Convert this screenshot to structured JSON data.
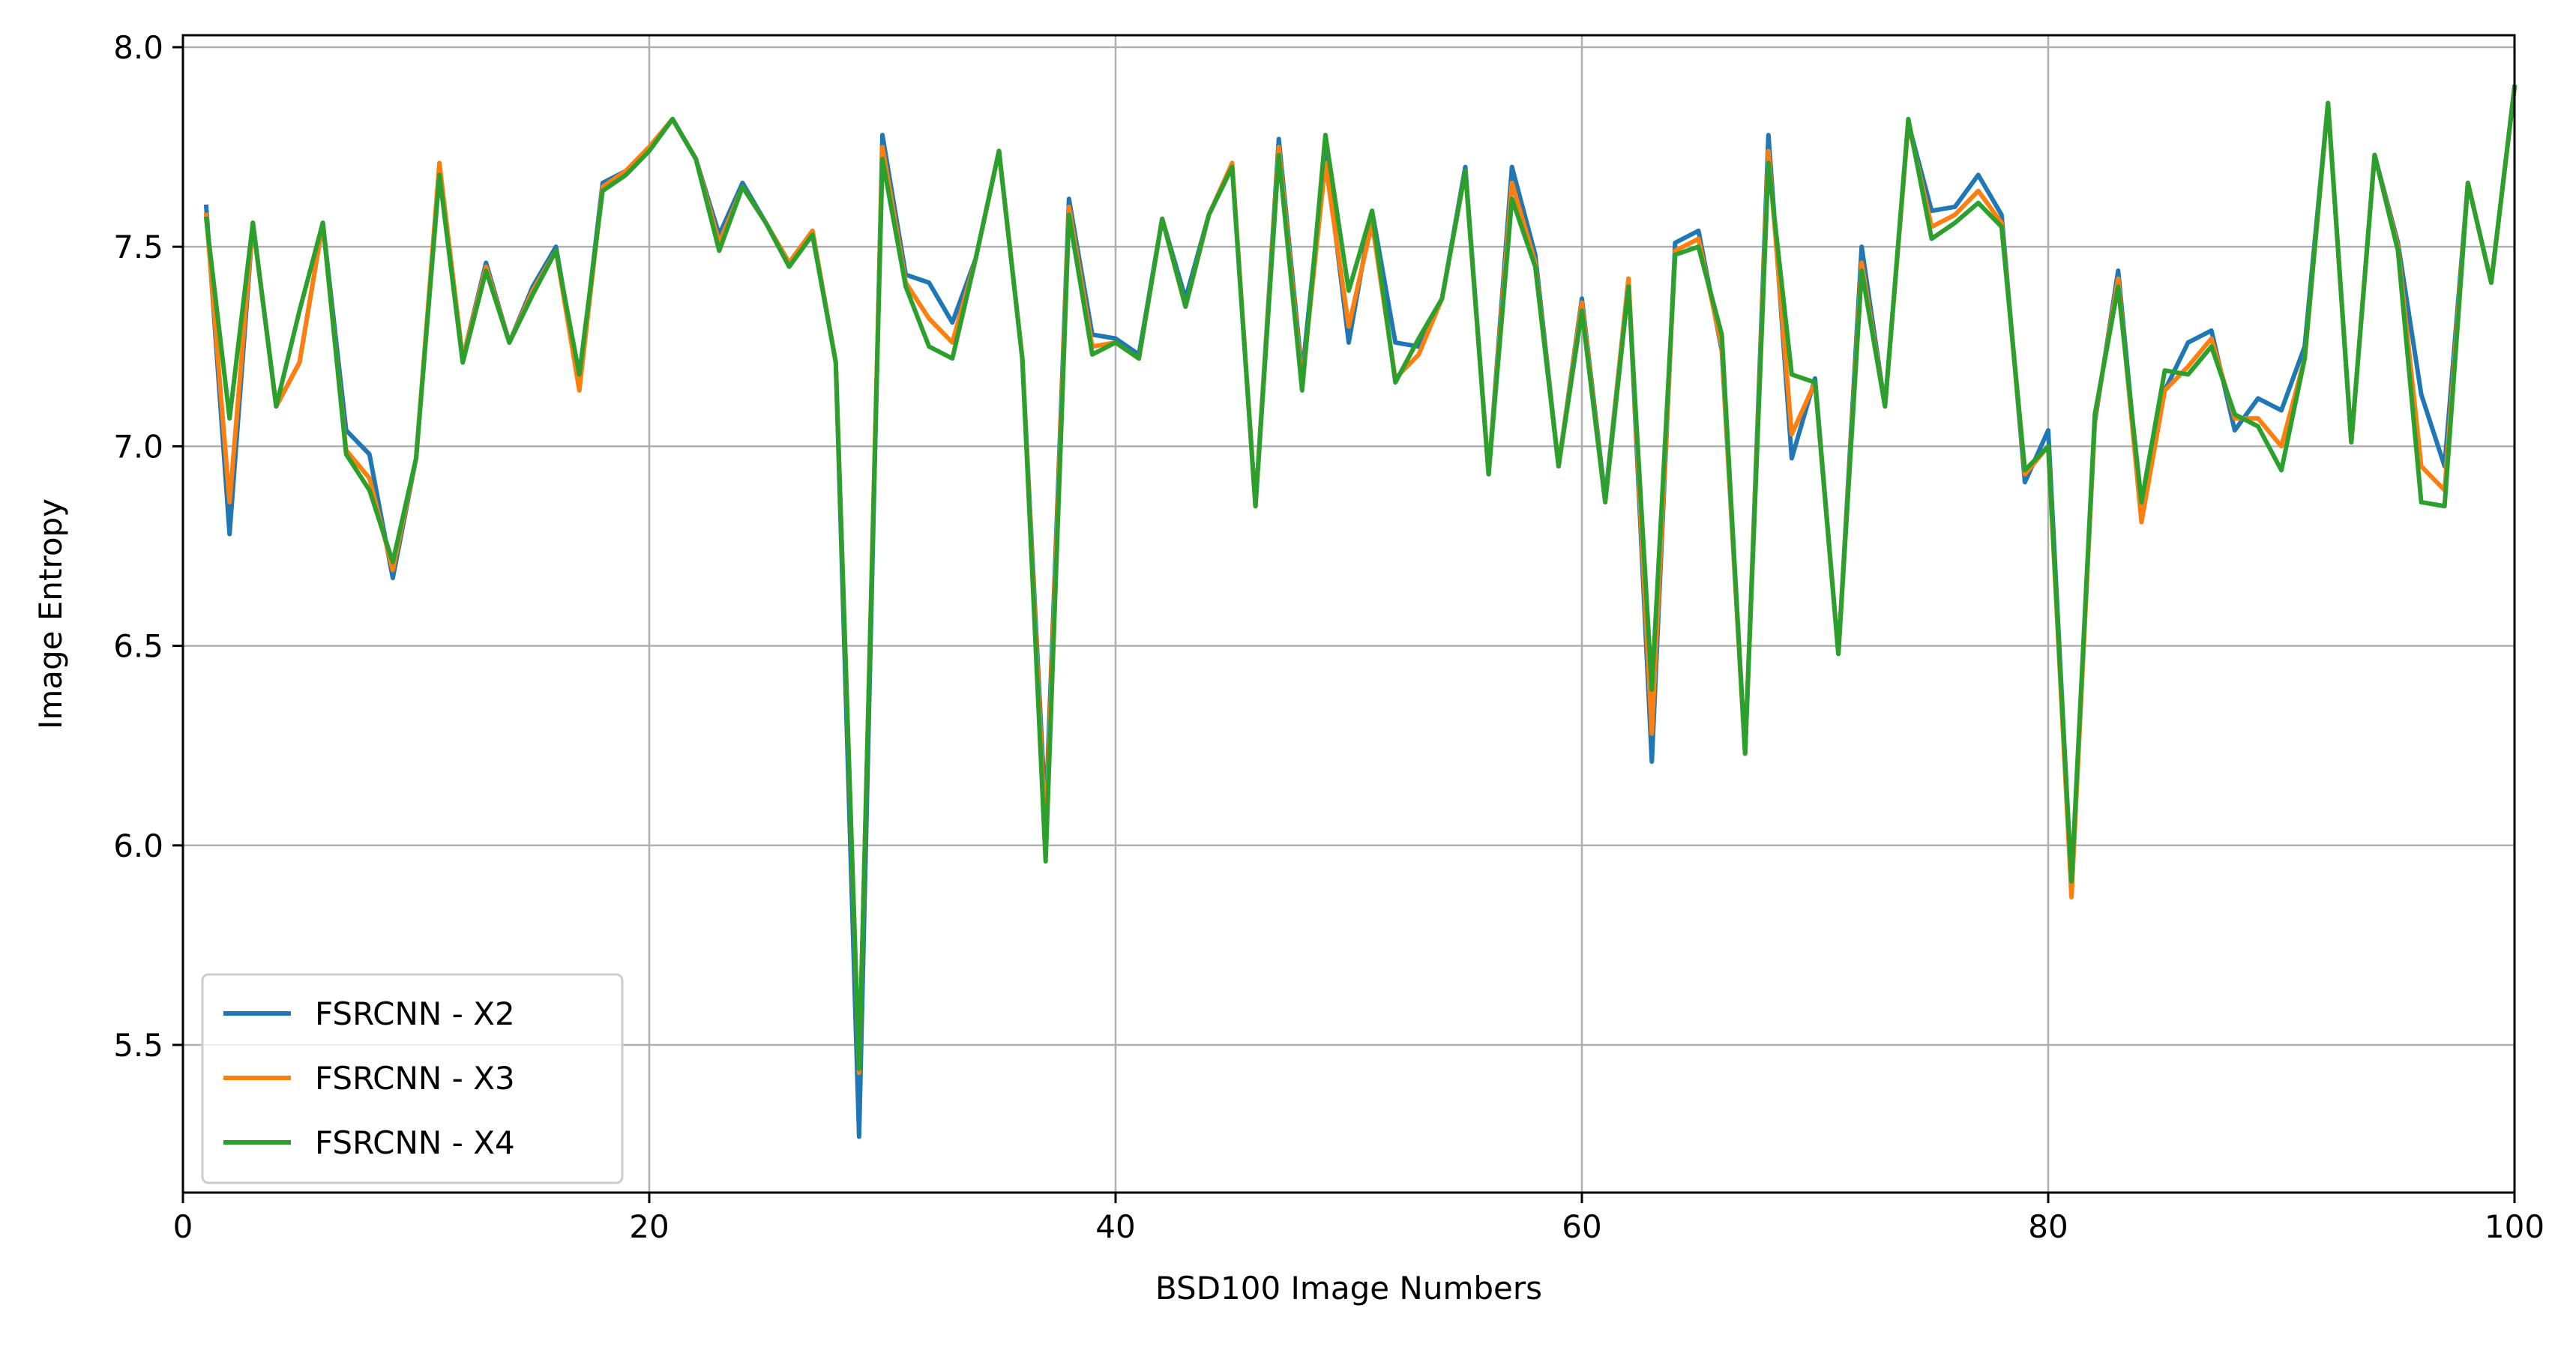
{
  "chart_data": {
    "type": "line",
    "title": "",
    "xlabel": "BSD100 Image Numbers",
    "ylabel": "Image Entropy",
    "xlim": [
      0,
      100
    ],
    "ylim": [
      5.13,
      8.03
    ],
    "xticks": [
      0,
      20,
      40,
      60,
      80,
      100
    ],
    "yticks": [
      5.5,
      6.0,
      6.5,
      7.0,
      7.5,
      8.0
    ],
    "xtick_labels": [
      "0",
      "20",
      "40",
      "60",
      "80",
      "100"
    ],
    "ytick_labels": [
      "5.5",
      "6.0",
      "6.5",
      "7.0",
      "7.5",
      "8.0"
    ],
    "grid": true,
    "legend": "lower-left",
    "x": [
      1,
      2,
      3,
      4,
      5,
      6,
      7,
      8,
      9,
      10,
      11,
      12,
      13,
      14,
      15,
      16,
      17,
      18,
      19,
      20,
      21,
      22,
      23,
      24,
      25,
      26,
      27,
      28,
      29,
      30,
      31,
      32,
      33,
      34,
      35,
      36,
      37,
      38,
      39,
      40,
      41,
      42,
      43,
      44,
      45,
      46,
      47,
      48,
      49,
      50,
      51,
      52,
      53,
      54,
      55,
      56,
      57,
      58,
      59,
      60,
      61,
      62,
      63,
      64,
      65,
      66,
      67,
      68,
      69,
      70,
      71,
      72,
      73,
      74,
      75,
      76,
      77,
      78,
      79,
      80,
      81,
      82,
      83,
      84,
      85,
      86,
      87,
      88,
      89,
      90,
      91,
      92,
      93,
      94,
      95,
      96,
      97,
      98,
      99,
      100
    ],
    "series": [
      {
        "name": "FSRCNN - X2",
        "color": "#1f77b4",
        "values": [
          7.6,
          6.78,
          7.56,
          7.1,
          7.21,
          7.56,
          7.04,
          6.98,
          6.67,
          6.97,
          7.7,
          7.22,
          7.46,
          7.26,
          7.4,
          7.5,
          7.16,
          7.66,
          7.69,
          7.75,
          7.82,
          7.72,
          7.53,
          7.66,
          7.56,
          7.46,
          7.54,
          7.21,
          5.27,
          7.78,
          7.43,
          7.41,
          7.31,
          7.47,
          7.74,
          7.22,
          6.07,
          7.62,
          7.28,
          7.27,
          7.23,
          7.57,
          7.37,
          7.58,
          7.7,
          6.85,
          7.77,
          7.18,
          7.74,
          7.26,
          7.59,
          7.26,
          7.25,
          7.37,
          7.7,
          6.93,
          7.7,
          7.48,
          6.95,
          7.37,
          6.87,
          7.42,
          6.21,
          7.51,
          7.54,
          7.24,
          6.23,
          7.78,
          6.97,
          7.17,
          6.48,
          7.5,
          7.1,
          7.81,
          7.59,
          7.6,
          7.68,
          7.58,
          6.91,
          7.04,
          5.9,
          7.06,
          7.44,
          6.83,
          7.14,
          7.26,
          7.29,
          7.04,
          7.12,
          7.09,
          7.25,
          7.86,
          7.01,
          7.73,
          7.51,
          7.13,
          6.95,
          7.66,
          7.41,
          7.9
        ]
      },
      {
        "name": "FSRCNN - X3",
        "color": "#ff7f0e",
        "values": [
          7.58,
          6.86,
          7.56,
          7.1,
          7.21,
          7.56,
          6.99,
          6.92,
          6.69,
          6.97,
          7.71,
          7.22,
          7.45,
          7.26,
          7.39,
          7.49,
          7.14,
          7.65,
          7.69,
          7.75,
          7.82,
          7.72,
          7.51,
          7.65,
          7.56,
          7.46,
          7.54,
          7.21,
          5.43,
          7.75,
          7.41,
          7.32,
          7.26,
          7.47,
          7.74,
          7.22,
          6.02,
          7.6,
          7.25,
          7.26,
          7.22,
          7.57,
          7.35,
          7.58,
          7.71,
          6.85,
          7.75,
          7.16,
          7.71,
          7.3,
          7.56,
          7.17,
          7.23,
          7.37,
          7.69,
          6.93,
          7.66,
          7.46,
          6.95,
          7.36,
          6.86,
          7.42,
          6.28,
          7.49,
          7.52,
          7.25,
          6.23,
          7.74,
          7.03,
          7.16,
          6.48,
          7.46,
          7.1,
          7.81,
          7.55,
          7.58,
          7.64,
          7.56,
          6.93,
          7.0,
          5.87,
          7.07,
          7.42,
          6.81,
          7.14,
          7.2,
          7.27,
          7.07,
          7.07,
          7.0,
          7.22,
          7.86,
          7.01,
          7.73,
          7.5,
          6.95,
          6.89,
          7.66,
          7.41,
          7.9
        ]
      },
      {
        "name": "FSRCNN - X4",
        "color": "#2ca02c",
        "values": [
          7.57,
          7.07,
          7.56,
          7.1,
          7.34,
          7.56,
          6.98,
          6.89,
          6.71,
          6.97,
          7.68,
          7.21,
          7.44,
          7.26,
          7.38,
          7.49,
          7.18,
          7.64,
          7.68,
          7.74,
          7.82,
          7.72,
          7.49,
          7.65,
          7.56,
          7.45,
          7.53,
          7.21,
          5.44,
          7.72,
          7.4,
          7.25,
          7.22,
          7.47,
          7.74,
          7.22,
          5.96,
          7.58,
          7.23,
          7.26,
          7.22,
          7.57,
          7.35,
          7.58,
          7.7,
          6.85,
          7.73,
          7.14,
          7.78,
          7.39,
          7.59,
          7.16,
          7.27,
          7.37,
          7.69,
          6.93,
          7.62,
          7.45,
          6.95,
          7.34,
          6.86,
          7.4,
          6.39,
          7.48,
          7.5,
          7.28,
          6.23,
          7.71,
          7.18,
          7.16,
          6.48,
          7.44,
          7.1,
          7.82,
          7.52,
          7.56,
          7.61,
          7.55,
          6.94,
          7.0,
          5.91,
          7.08,
          7.4,
          6.86,
          7.19,
          7.18,
          7.25,
          7.08,
          7.05,
          6.94,
          7.22,
          7.86,
          7.01,
          7.73,
          7.49,
          6.86,
          6.85,
          7.66,
          7.41,
          7.9
        ]
      }
    ]
  }
}
